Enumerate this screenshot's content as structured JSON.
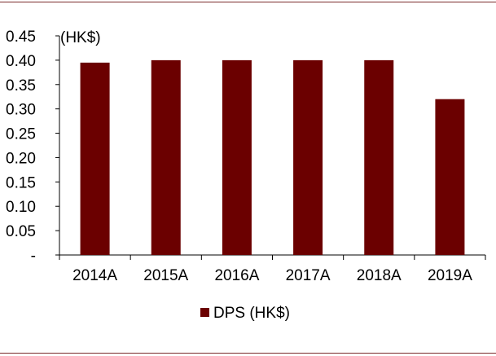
{
  "chart_data": {
    "type": "bar",
    "title": "",
    "xlabel": "",
    "ylabel": "",
    "unit_label": "(HK$)",
    "categories": [
      "2014A",
      "2015A",
      "2016A",
      "2017A",
      "2018A",
      "2019A"
    ],
    "series": [
      {
        "name": "DPS (HK$)",
        "values": [
          0.395,
          0.4,
          0.4,
          0.4,
          0.4,
          0.32
        ],
        "color": "#6b0000"
      }
    ],
    "ylim": [
      0,
      0.45
    ],
    "yticks": [
      0,
      0.05,
      0.1,
      0.15,
      0.2,
      0.25,
      0.3,
      0.35,
      0.4,
      0.45
    ],
    "ytick_labels": [
      "-",
      "0.05",
      "0.10",
      "0.15",
      "0.20",
      "0.25",
      "0.30",
      "0.35",
      "0.40",
      "0.45"
    ],
    "grid": false,
    "legend_position": "bottom"
  },
  "colors": {
    "bar": "#6b0000",
    "rule": "#7a2a2a",
    "axis": "#000000"
  }
}
